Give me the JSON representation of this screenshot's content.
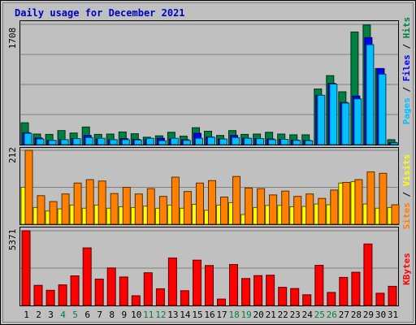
{
  "chart_data": {
    "type": "bar",
    "title": "Daily usage for December 2021",
    "categories": [
      "1",
      "2",
      "3",
      "4",
      "5",
      "6",
      "7",
      "8",
      "9",
      "10",
      "11",
      "12",
      "13",
      "14",
      "15",
      "16",
      "17",
      "18",
      "19",
      "20",
      "21",
      "22",
      "23",
      "24",
      "25",
      "26",
      "27",
      "28",
      "29",
      "30",
      "31"
    ],
    "weekend_days": [
      "4",
      "5",
      "11",
      "12",
      "18",
      "19",
      "25",
      "26"
    ],
    "panels": [
      {
        "id": "hits-files-pages",
        "ymax_label": "1708",
        "ylim": [
          0,
          1708
        ],
        "side_labels": [
          "Pages",
          "Files",
          "Hits"
        ],
        "series": [
          {
            "name": "Hits",
            "color": "#008040",
            "values": [
              310,
              150,
              145,
              200,
              165,
              250,
              145,
              150,
              180,
              155,
              105,
              125,
              175,
              120,
              240,
              190,
              130,
              200,
              145,
              150,
              175,
              150,
              140,
              140,
              790,
              980,
              750,
              1600,
              1700,
              1080,
              70
            ]
          },
          {
            "name": "Files",
            "color": "#0000ff",
            "values": [
              170,
              95,
              60,
              70,
              85,
              130,
              80,
              70,
              85,
              75,
              70,
              90,
              80,
              70,
              160,
              110,
              80,
              130,
              90,
              85,
              80,
              75,
              65,
              60,
              700,
              870,
              600,
              690,
              1520,
              1080,
              30
            ]
          },
          {
            "name": "Pages",
            "color": "#00c0ff",
            "values": [
              160,
              80,
              60,
              70,
              85,
              100,
              90,
              70,
              70,
              65,
              90,
              55,
              90,
              60,
              90,
              105,
              80,
              100,
              90,
              85,
              70,
              75,
              60,
              55,
              700,
              860,
              590,
              650,
              1420,
              1000,
              25
            ]
          }
        ]
      },
      {
        "id": "visits-sites",
        "ymax_label": "212",
        "ylim": [
          0,
          212
        ],
        "side_labels": [
          "Sites",
          "Visits"
        ],
        "series": [
          {
            "name": "Visits",
            "color": "#ffff00",
            "values": [
              106,
              48,
              38,
              44,
              55,
              46,
              55,
              46,
              50,
              48,
              52,
              46,
              55,
              46,
              57,
              40,
              55,
              62,
              28,
              48,
              54,
              54,
              50,
              51,
              58,
              56,
              118,
              122,
              58,
              46,
              48
            ]
          },
          {
            "name": "Sites",
            "color": "#ff8000",
            "values": [
              212,
              82,
              65,
              87,
              118,
              128,
              124,
              88,
              106,
              87,
              102,
              80,
              135,
              94,
              118,
              125,
              78,
              137,
              104,
              102,
              84,
              95,
              80,
              87,
              74,
              98,
              120,
              128,
              150,
              146,
              56
            ]
          }
        ]
      },
      {
        "id": "kbytes",
        "ymax_label": "5371",
        "ylim": [
          0,
          5371
        ],
        "side_labels": [
          "KBytes"
        ],
        "series": [
          {
            "name": "KBytes",
            "color": "#ff0000",
            "values": [
              5371,
              1450,
              1090,
              1480,
              2130,
              4140,
              1900,
              2700,
              2050,
              700,
              2350,
              1200,
              3410,
              1060,
              3260,
              2870,
              460,
              2940,
              1940,
              2150,
              2180,
              1310,
              1220,
              770,
              2890,
              940,
              2020,
              2390,
              4420,
              880,
              1380
            ]
          }
        ]
      }
    ]
  }
}
